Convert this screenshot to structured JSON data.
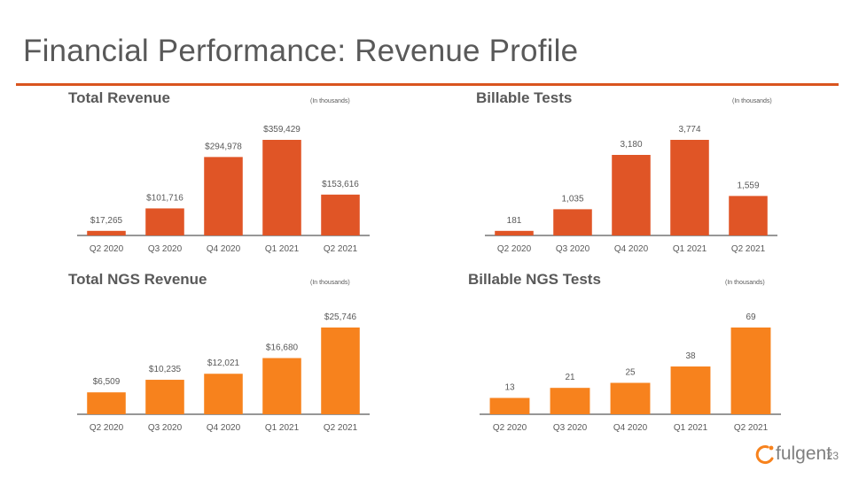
{
  "page": {
    "title": "Financial Performance: Revenue Profile",
    "page_number": "23",
    "logo_text": "fulgent",
    "accent_color": "#D9541E"
  },
  "colors": {
    "red_bar": "#E05526",
    "orange_bar": "#F7821D",
    "axis": "#595959",
    "text": "#595959"
  },
  "chart_data": [
    {
      "type": "bar",
      "title": "Total Revenue",
      "units_note": "(In thousands)",
      "categories": [
        "Q2 2020",
        "Q3 2020",
        "Q4 2020",
        "Q1 2021",
        "Q2 2021"
      ],
      "values": [
        17265,
        101716,
        294978,
        359429,
        153616
      ],
      "data_labels": [
        "$17,265",
        "$101,716",
        "$294,978",
        "$359,429",
        "$153,616"
      ],
      "color": "#E05526",
      "ylim": [
        0,
        359429
      ]
    },
    {
      "type": "bar",
      "title": "Billable Tests",
      "units_note": "(In thousands)",
      "categories": [
        "Q2 2020",
        "Q3 2020",
        "Q4 2020",
        "Q1 2021",
        "Q2 2021"
      ],
      "values": [
        181,
        1035,
        3180,
        3774,
        1559
      ],
      "data_labels": [
        "181",
        "1,035",
        "3,180",
        "3,774",
        "1,559"
      ],
      "color": "#E05526",
      "ylim": [
        0,
        3774
      ]
    },
    {
      "type": "bar",
      "title": "Total NGS Revenue",
      "units_note": "(In thousands)",
      "categories": [
        "Q2 2020",
        "Q3 2020",
        "Q4 2020",
        "Q1 2021",
        "Q2 2021"
      ],
      "values": [
        6509,
        10235,
        12021,
        16680,
        25746
      ],
      "data_labels": [
        "$6,509",
        "$10,235",
        "$12,021",
        "$16,680",
        "$25,746"
      ],
      "color": "#F7821D",
      "ylim": [
        0,
        25746
      ]
    },
    {
      "type": "bar",
      "title": "Billable NGS Tests",
      "units_note": "(In thousands)",
      "categories": [
        "Q2 2020",
        "Q3 2020",
        "Q4 2020",
        "Q1 2021",
        "Q2 2021"
      ],
      "values": [
        13,
        21,
        25,
        38,
        69
      ],
      "data_labels": [
        "13",
        "21",
        "25",
        "38",
        "69"
      ],
      "color": "#F7821D",
      "ylim": [
        0,
        69
      ]
    }
  ]
}
